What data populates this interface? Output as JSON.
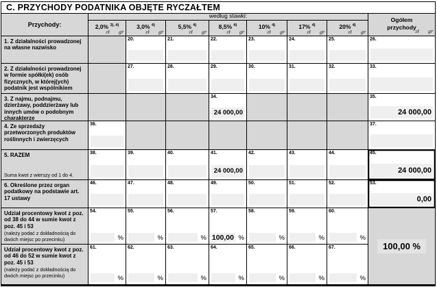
{
  "section_title": "C. PRZYCHODY PODATNIKA OBJĘTE RYCZAŁTEM",
  "table": {
    "row_header_label": "Przychody:",
    "rates_group_label": "według stawki:",
    "unit_zl": "zł",
    "unit_gr": "gr",
    "percent_unit": "%",
    "rate_columns": [
      {
        "label": "2,0%",
        "sup": "3), 4)"
      },
      {
        "label": "3,0%",
        "sup": "4)"
      },
      {
        "label": "5,5%",
        "sup": "4)"
      },
      {
        "label": "8,5%",
        "sup": "4)"
      },
      {
        "label": "10%",
        "sup": "4)"
      },
      {
        "label": "17%",
        "sup": "4)"
      },
      {
        "label": "20%",
        "sup": "4)"
      }
    ],
    "total_column": {
      "label_line1": "Ogółem",
      "label_line2": "przychody"
    },
    "rows": [
      {
        "label": "1. Z działalności prowadzonej na własne nazwisko",
        "cells": [
          null,
          {
            "num": "20."
          },
          {
            "num": "21."
          },
          {
            "num": "22."
          },
          {
            "num": "23."
          },
          {
            "num": "24."
          },
          {
            "num": "25."
          }
        ],
        "total": {
          "num": "26."
        }
      },
      {
        "label": "2. Z działalności prowadzonej w formie spółki(ek) osób fizycznych, w której(ych) podatnik jest wspólnikiem",
        "cells": [
          null,
          {
            "num": "27."
          },
          {
            "num": "28."
          },
          {
            "num": "29."
          },
          {
            "num": "30."
          },
          {
            "num": "31."
          },
          {
            "num": "32."
          }
        ],
        "total": {
          "num": "33."
        }
      },
      {
        "label": "3. Z najmu, podnajmu, dzierżawy, poddzierżawy lub innych umów o podobnym charakterze",
        "cells": [
          null,
          null,
          null,
          {
            "num": "34.",
            "value": "24 000,00"
          },
          null,
          null,
          null
        ],
        "total": {
          "num": "35.",
          "value": "24 000,00"
        }
      },
      {
        "label": "4. Ze sprzedaży przetworzonych produktów roślinnych i zwierzęcych",
        "cells": [
          {
            "num": "36."
          },
          null,
          null,
          null,
          null,
          null,
          null
        ],
        "total": {
          "num": "37."
        }
      },
      {
        "label": "5. RAZEM",
        "sublabel": "Suma kwot z wierszy od 1 do 4.",
        "cells": [
          {
            "num": "38."
          },
          {
            "num": "39."
          },
          {
            "num": "40."
          },
          {
            "num": "41.",
            "value": "24 000,00"
          },
          {
            "num": "42."
          },
          {
            "num": "43."
          },
          {
            "num": "44."
          }
        ],
        "total": {
          "num": "45.",
          "value": "24 000,00",
          "emph": true
        }
      },
      {
        "label": "6. Określone przez organ podatkowy na podstawie art. 17 ustawy",
        "cells": [
          {
            "num": "46."
          },
          {
            "num": "47."
          },
          {
            "num": "48."
          },
          {
            "num": "49."
          },
          {
            "num": "50."
          },
          {
            "num": "51."
          },
          {
            "num": "52."
          }
        ],
        "total": {
          "num": "53.",
          "value": "0,00",
          "emph": true
        }
      },
      {
        "label": "Udział procentowy kwot z poz. od 38 do 44 w sumie kwot z poz. 45 i 53",
        "note": "(należy podać z dokładnością do dwóch miejsc po przecinku)",
        "percent": true,
        "cells": [
          {
            "num": "54."
          },
          {
            "num": "55."
          },
          {
            "num": "56."
          },
          {
            "num": "57.",
            "value": "100,00"
          },
          {
            "num": "58."
          },
          {
            "num": "59."
          },
          {
            "num": "60."
          }
        ],
        "total_merged": {
          "value": "100,00 %"
        }
      },
      {
        "label": "Udział procentowy kwot z poz. od 46 do 52 w sumie kwot z poz. 45 i 53",
        "note": "(należy podać z dokładnością do dwóch miejsc po przecinku)",
        "percent": true,
        "cells": [
          {
            "num": "61."
          },
          {
            "num": "62."
          },
          {
            "num": "63."
          },
          {
            "num": "64."
          },
          {
            "num": "65."
          },
          {
            "num": "66."
          },
          {
            "num": "67."
          }
        ]
      }
    ]
  },
  "colors": {
    "header_bg": "#d7d7d7",
    "disabled_cell_bg": "#d7d7d7",
    "input_field_bg": "#efefef",
    "border": "#000000"
  }
}
